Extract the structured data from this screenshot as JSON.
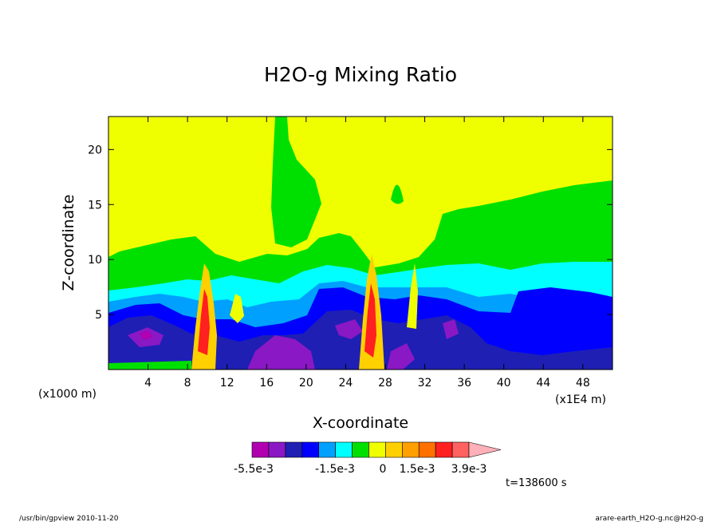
{
  "chart_data": {
    "type": "heatmap",
    "title": "H2O-g Mixing Ratio",
    "xlabel": "X-coordinate",
    "ylabel": "Z-coordinate",
    "x_unit_note": "(x1000 m)",
    "x_scale_note": "(x1E4 m)",
    "xlim": [
      0,
      51
    ],
    "ylim": [
      0,
      23
    ],
    "x_ticks": [
      "4",
      "8",
      "12",
      "16",
      "20",
      "24",
      "28",
      "32",
      "36",
      "40",
      "44",
      "48"
    ],
    "y_ticks": [
      "5",
      "10",
      "15",
      "20"
    ],
    "colorbar": {
      "labels": [
        "-5.5e-3",
        "-1.5e-3",
        "0",
        "1.5e-3",
        "3.9e-3"
      ],
      "colors": [
        "#b000b0",
        "#8a18c4",
        "#1f1fb4",
        "#0000ff",
        "#00a0ff",
        "#00ffff",
        "#00e000",
        "#f0ff00",
        "#ffd000",
        "#ffa000",
        "#ff7000",
        "#ff2020",
        "#ff6060",
        "#ffb0b8"
      ]
    },
    "time_label": "t=138600 s"
  },
  "footer": {
    "left": "/usr/bin/gpview   2010-11-20",
    "right": "arare-earth_H2O-g.nc@H2O-g"
  }
}
